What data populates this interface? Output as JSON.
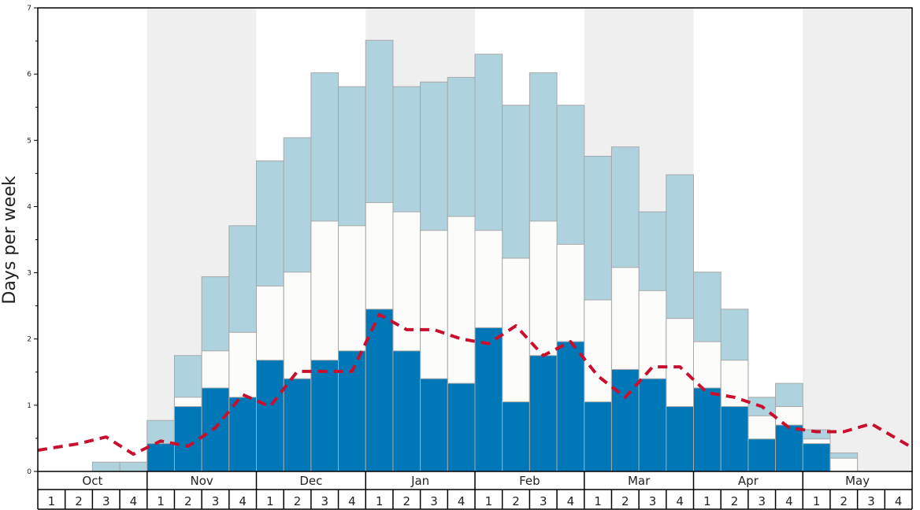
{
  "chart_data": {
    "type": "bar",
    "ylabel": "Days per week",
    "ylim": [
      0,
      7
    ],
    "yticks": [
      "0",
      "1",
      "2",
      "3",
      "4",
      "5",
      "6",
      "7"
    ],
    "months": [
      "Oct",
      "Nov",
      "Dec",
      "Jan",
      "Feb",
      "Mar",
      "Apr",
      "May"
    ],
    "week_labels": [
      "1",
      "2",
      "3",
      "4"
    ],
    "shaded_months": [
      "Nov",
      "Jan",
      "Mar",
      "May"
    ],
    "series": [
      {
        "color": "#0077b6",
        "values": [
          0,
          0,
          0,
          0,
          0.42,
          0.98,
          1.26,
          1.12,
          1.68,
          1.4,
          1.68,
          1.82,
          2.45,
          1.82,
          1.4,
          1.33,
          2.17,
          1.05,
          1.75,
          1.96,
          1.05,
          1.54,
          1.4,
          0.98,
          1.26,
          0.98,
          0.49,
          0.7,
          0.42,
          0,
          0,
          0
        ]
      },
      {
        "color": "#fcfcfa",
        "values": [
          0,
          0,
          0,
          0,
          0.42,
          1.12,
          1.82,
          2.1,
          2.8,
          3.01,
          3.78,
          3.71,
          4.06,
          3.92,
          3.64,
          3.85,
          3.64,
          3.22,
          3.78,
          3.43,
          2.59,
          3.08,
          2.73,
          2.31,
          1.96,
          1.68,
          0.84,
          0.98,
          0.49,
          0.2,
          0,
          0
        ]
      },
      {
        "color": "#aed3df",
        "values": [
          0,
          0,
          0.14,
          0.14,
          0.77,
          1.75,
          2.94,
          3.71,
          4.69,
          5.04,
          6.02,
          5.81,
          6.51,
          5.81,
          5.88,
          5.95,
          6.3,
          5.53,
          6.02,
          5.53,
          4.76,
          4.9,
          3.92,
          4.48,
          3.01,
          2.45,
          1.12,
          1.33,
          0.63,
          0.28,
          0,
          0
        ]
      },
      {
        "color": "#c8102e",
        "line_style": "dashed",
        "values": [
          0.32,
          0.42,
          0.52,
          0.26,
          0.46,
          0.38,
          0.66,
          1.16,
          0.98,
          1.51,
          1.51,
          1.51,
          2.37,
          2.14,
          2.14,
          2.0,
          1.93,
          2.2,
          1.75,
          1.96,
          1.44,
          1.12,
          1.58,
          1.58,
          1.19,
          1.12,
          0.98,
          0.66,
          0.6,
          0.6,
          0.72,
          0.36
        ]
      }
    ],
    "grid": false,
    "legend": "none"
  }
}
